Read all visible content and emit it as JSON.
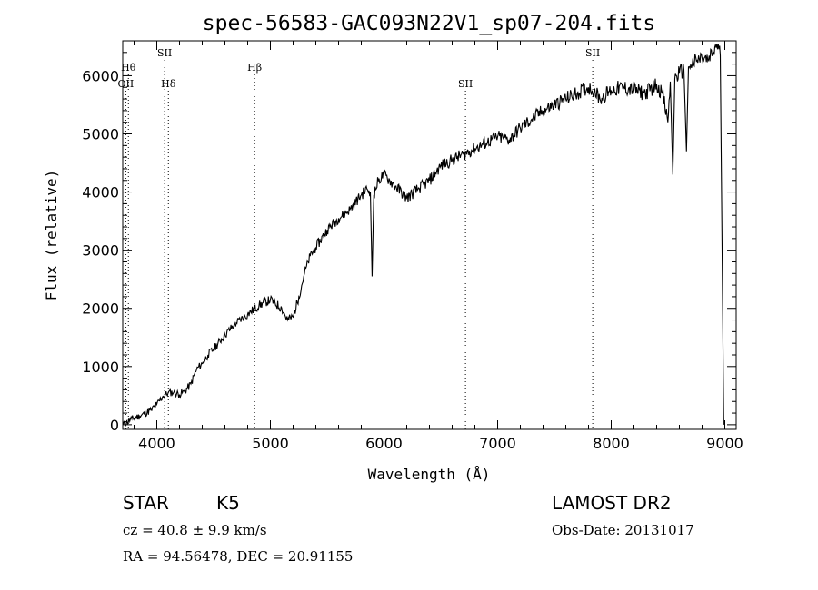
{
  "chart_data": {
    "type": "line",
    "title": "spec-56583-GAC093N22V1_sp07-204.fits",
    "xlabel": "Wavelength (Å)",
    "ylabel": "Flux (relative)",
    "xlim": [
      3700,
      9100
    ],
    "ylim": [
      -80,
      6600
    ],
    "xticks": [
      4000,
      5000,
      6000,
      7000,
      8000,
      9000
    ],
    "yticks": [
      0,
      1000,
      2000,
      3000,
      4000,
      5000,
      6000
    ],
    "grid": false,
    "series": [
      {
        "x": [
          3700,
          3780,
          3850,
          3950,
          4000,
          4050,
          4100,
          4150,
          4200,
          4250,
          4300,
          4350,
          4400,
          4450,
          4500,
          4600,
          4700,
          4800,
          4900,
          5000,
          5100,
          5150,
          5200,
          5250,
          5300,
          5350,
          5400,
          5500,
          5600,
          5700,
          5800,
          5850,
          5880,
          5895,
          5910,
          5950,
          6000,
          6050,
          6100,
          6200,
          6300,
          6400,
          6500,
          6600,
          6700,
          6800,
          6900,
          7000,
          7100,
          7200,
          7300,
          7400,
          7500,
          7600,
          7700,
          7800,
          7850,
          7900,
          8000,
          8100,
          8200,
          8300,
          8400,
          8450,
          8498,
          8520,
          8542,
          8560,
          8600,
          8640,
          8662,
          8680,
          8700,
          8750,
          8800,
          8850,
          8900,
          8930,
          8960,
          8990
        ],
        "y": [
          0,
          100,
          150,
          250,
          350,
          480,
          550,
          560,
          520,
          580,
          700,
          950,
          1050,
          1200,
          1300,
          1550,
          1750,
          1900,
          2050,
          2150,
          2000,
          1800,
          1850,
          2200,
          2600,
          2900,
          3050,
          3350,
          3550,
          3700,
          3950,
          4050,
          4000,
          2550,
          3950,
          4200,
          4300,
          4200,
          4100,
          3900,
          4050,
          4200,
          4450,
          4550,
          4650,
          4750,
          4850,
          4950,
          4900,
          5100,
          5250,
          5400,
          5500,
          5600,
          5700,
          5800,
          5750,
          5600,
          5750,
          5800,
          5750,
          5700,
          5850,
          5700,
          5200,
          5900,
          4300,
          5950,
          6050,
          6100,
          4700,
          6150,
          6200,
          6250,
          6300,
          6250,
          6400,
          6550,
          6350,
          0
        ]
      }
    ],
    "line_markers": [
      {
        "label": "OII",
        "x": 3727,
        "row": 3
      },
      {
        "label": "Hθ",
        "x": 3750,
        "row": 2
      },
      {
        "label": "SII",
        "x": 4069,
        "row": 1
      },
      {
        "label": "Hδ",
        "x": 4102,
        "row": 3
      },
      {
        "label": "Hβ",
        "x": 4861,
        "row": 2
      },
      {
        "label": "SII",
        "x": 6717,
        "row": 3
      },
      {
        "label": "SII",
        "x": 7837,
        "row": 1
      }
    ]
  },
  "info": {
    "class_label": "STAR",
    "subclass": "K5",
    "survey": "LAMOST DR2",
    "velocity": "cz = 40.8 ± 9.9 km/s",
    "obs_date": "Obs-Date: 20131017",
    "coords": "RA =  94.56478, DEC =  20.91155"
  }
}
